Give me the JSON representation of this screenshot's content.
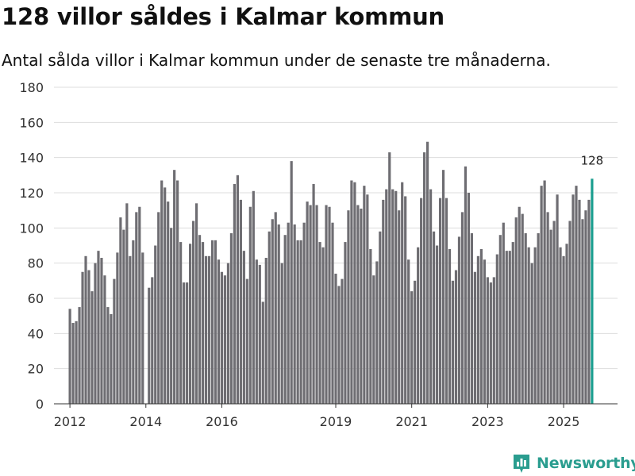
{
  "header": {
    "title": "128 villor såldes i Kalmar kommun",
    "subtitle": "Antal sålda villor i Kalmar kommun under de senaste tre månaderna."
  },
  "brand": {
    "name": "Newsworthy",
    "logo_icon": "bar-chart-logo-icon",
    "color": "#2a9d8f"
  },
  "colors": {
    "bar": "#6e6d72",
    "highlight": "#1a9e8f",
    "grid": "#dddddd"
  },
  "chart_data": {
    "type": "bar",
    "title": "128 villor såldes i Kalmar kommun",
    "xlabel": "",
    "ylabel": "",
    "ylim": [
      0,
      180
    ],
    "yticks": [
      0,
      20,
      40,
      60,
      80,
      100,
      120,
      140,
      160,
      180
    ],
    "x_range": [
      2011.58,
      2026.42
    ],
    "xticks": [
      {
        "label": "2012",
        "value": 2012.0
      },
      {
        "label": "2014",
        "value": 2014.0
      },
      {
        "label": "2016",
        "value": 2016.0
      },
      {
        "label": "2019",
        "value": 2019.0
      },
      {
        "label": "2021",
        "value": 2021.0
      },
      {
        "label": "2023",
        "value": 2023.0
      },
      {
        "label": "2025",
        "value": 2025.0
      }
    ],
    "x_start": 2012.0,
    "x_step": 0.08333,
    "grid": true,
    "highlight_label": "128",
    "values": [
      54,
      46,
      47,
      55,
      75,
      84,
      76,
      64,
      80,
      87,
      83,
      73,
      55,
      51,
      71,
      86,
      106,
      99,
      114,
      84,
      93,
      109,
      112,
      86,
      0,
      66,
      72,
      90,
      109,
      127,
      123,
      115,
      100,
      133,
      127,
      92,
      69,
      69,
      91,
      104,
      114,
      96,
      92,
      84,
      84,
      93,
      93,
      82,
      75,
      73,
      80,
      97,
      125,
      130,
      116,
      87,
      71,
      112,
      121,
      82,
      79,
      58,
      83,
      98,
      105,
      109,
      102,
      80,
      96,
      103,
      138,
      102,
      93,
      93,
      103,
      115,
      113,
      125,
      113,
      92,
      89,
      113,
      112,
      103,
      74,
      67,
      71,
      92,
      110,
      127,
      126,
      113,
      111,
      124,
      119,
      88,
      73,
      81,
      98,
      116,
      122,
      143,
      122,
      121,
      110,
      126,
      118,
      82,
      64,
      70,
      89,
      117,
      143,
      149,
      122,
      98,
      90,
      117,
      133,
      117,
      88,
      70,
      76,
      95,
      109,
      135,
      120,
      97,
      75,
      84,
      88,
      82,
      72,
      69,
      72,
      85,
      96,
      103,
      87,
      87,
      92,
      106,
      112,
      108,
      97,
      89,
      80,
      89,
      97,
      124,
      127,
      109,
      99,
      104,
      119,
      89,
      84,
      91,
      104,
      119,
      124,
      116,
      105,
      110,
      116,
      128
    ]
  }
}
